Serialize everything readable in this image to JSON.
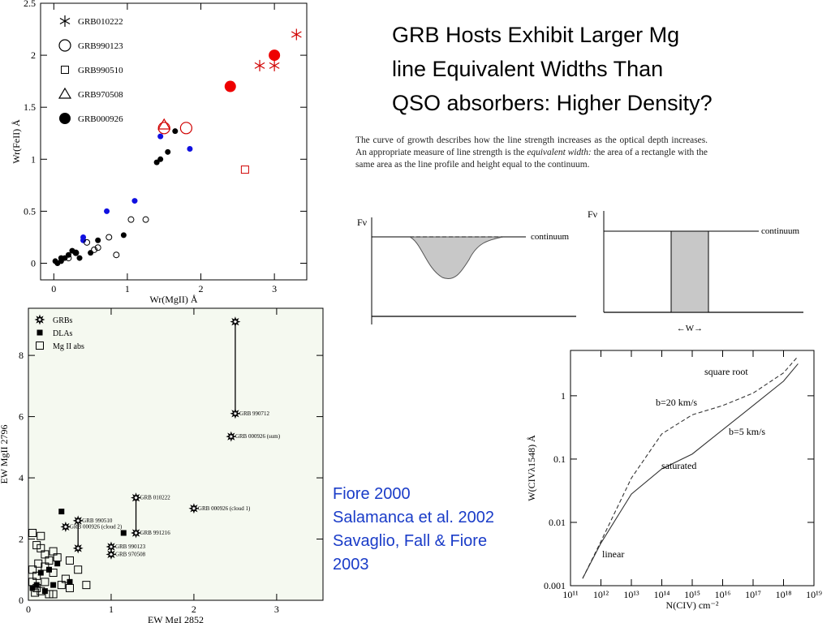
{
  "slide": {
    "title_lines": [
      "GRB Hosts Exhibit Larger Mg",
      "line Equivalent Widths  Than",
      "QSO absorbers: Higher Density?"
    ],
    "citations": [
      "Fiore 2000",
      "Salamanca et al. 2002",
      "Savaglio, Fall & Fiore 2003"
    ]
  },
  "diagram": {
    "paragraph_start": "The curve of growth describes how the line strength increases as the optical depth increases.   An appropriate measure of line strength is the ",
    "paragraph_emphasis": "equivalent width:",
    "paragraph_end": " the area of a rectangle with the same area as the line profile and height equal to the continuum.",
    "flux_label": "Fν",
    "continuum_label": "continuum",
    "width_label": "←W→"
  },
  "chart_data": [
    {
      "type": "scatter",
      "x_label": "Wr(MgII) Å",
      "y_label": "Wr(FeII) Å",
      "xlim": [
        -0.18,
        3.44
      ],
      "ylim": [
        -0.16,
        2.5
      ],
      "xticks": [
        0,
        1,
        2,
        3
      ],
      "yticks": [
        0,
        0.5,
        1,
        1.5,
        2,
        2.5
      ],
      "legend_color": "#000000",
      "series": [
        {
          "name": "GRB010222",
          "marker": "asterisk",
          "color": "#d00000",
          "x": [
            3.3,
            2.8,
            3.0
          ],
          "values": [
            2.2,
            1.9,
            1.9
          ]
        },
        {
          "name": "GRB990123",
          "marker": "circle-open",
          "color": "#d00000",
          "x": [
            1.8,
            1.5
          ],
          "values": [
            1.3,
            1.3
          ]
        },
        {
          "name": "GRB990510",
          "marker": "square-open",
          "color": "#d00000",
          "x": [
            2.6
          ],
          "values": [
            0.9
          ]
        },
        {
          "name": "GRB970508",
          "marker": "triangle-open",
          "color": "#d00000",
          "x": [
            1.5
          ],
          "values": [
            1.33
          ]
        },
        {
          "name": "GRB000926",
          "marker": "circle",
          "color": "#ee0000",
          "x": [
            2.4,
            3.0
          ],
          "values": [
            1.7,
            2.0
          ]
        },
        {
          "marker": "circle-small",
          "color": "#1010e0",
          "x": [
            1.45,
            1.85,
            1.1,
            0.72,
            0.4,
            0.4
          ],
          "values": [
            1.22,
            1.1,
            0.6,
            0.5,
            0.25,
            0.22
          ]
        },
        {
          "marker": "circle-small",
          "color": "#000000",
          "x": [
            1.65,
            1.55,
            1.45,
            1.4,
            0.95,
            0.6,
            0.5,
            0.35,
            0.25,
            0.2,
            0.15,
            0.1,
            0.05,
            0.02,
            0.1,
            0.3
          ],
          "values": [
            1.27,
            1.07,
            1.0,
            0.97,
            0.27,
            0.22,
            0.1,
            0.05,
            0.12,
            0.08,
            0.05,
            0.02,
            0.0,
            0.02,
            0.05,
            0.1
          ]
        },
        {
          "marker": "circle-open-small",
          "color": "#000000",
          "x": [
            1.05,
            1.25,
            0.75,
            0.85,
            0.6,
            0.55,
            0.45,
            0.3,
            0.2
          ],
          "values": [
            0.42,
            0.42,
            0.25,
            0.08,
            0.15,
            0.13,
            0.2,
            0.1,
            0.05
          ]
        }
      ]
    },
    {
      "type": "scatter",
      "background": "#f5f9f0",
      "x_label": "EW MgI 2852",
      "y_label": "EW MgII 2796",
      "xlim": [
        0,
        3.56
      ],
      "ylim": [
        0,
        9.54
      ],
      "xticks": [
        0,
        1,
        2,
        3
      ],
      "yticks": [
        0,
        2,
        4,
        6,
        8
      ],
      "legend_color": "#000000",
      "series": [
        {
          "name": "GRBs",
          "marker": "star",
          "color": "#000000",
          "x": [
            2.5,
            2.5,
            2.45,
            1.3,
            2.0,
            0.6,
            0.45,
            1.3,
            1.0,
            1.0,
            0.6
          ],
          "values": [
            9.1,
            6.1,
            5.35,
            3.35,
            3.0,
            2.6,
            2.4,
            2.2,
            1.75,
            1.5,
            1.7
          ],
          "labels": [
            null,
            "GRB 990712",
            "GRB 000926 (sum)",
            "GRB 010222",
            "GRB 000926 (cloud 1)",
            "GRB 990510",
            "GRB 000926 (cloud 2)",
            "GRB 991216",
            "GRB 990123",
            "GRB 970508",
            null
          ],
          "connected_pairs": [
            [
              0,
              1
            ],
            [
              3,
              7
            ],
            [
              5,
              10
            ]
          ]
        },
        {
          "name": "DLAs",
          "marker": "square",
          "color": "#000000",
          "x": [
            0.4,
            1.15,
            0.35,
            0.25,
            0.1,
            0.3,
            0.5,
            0.15,
            0.05,
            0.2
          ],
          "values": [
            2.9,
            2.2,
            1.2,
            1.0,
            0.5,
            0.5,
            0.6,
            0.9,
            0.4,
            0.3
          ]
        },
        {
          "name": "Mg II abs",
          "marker": "square-open",
          "color": "#000000",
          "x": [
            0.05,
            0.1,
            0.15,
            0.2,
            0.25,
            0.3,
            0.05,
            0.1,
            0.2,
            0.3,
            0.35,
            0.15,
            0.25,
            0.4,
            0.5,
            0.6,
            0.7,
            0.5,
            0.05,
            0.1,
            0.3,
            0.2,
            0.15,
            0.45,
            0.08,
            0.12
          ],
          "values": [
            2.2,
            1.8,
            2.1,
            1.5,
            1.3,
            1.6,
            1.0,
            0.8,
            0.6,
            0.9,
            1.4,
            0.3,
            0.2,
            0.5,
            0.4,
            1.0,
            0.5,
            1.3,
            0.6,
            0.4,
            0.2,
            1.1,
            1.7,
            0.7,
            0.25,
            1.2
          ]
        }
      ]
    },
    {
      "type": "line",
      "x_label": "N(CIV) cm⁻²",
      "y_label": "W(CIVλ1548) Å",
      "xlog": true,
      "ylog": true,
      "xlim": [
        100000000000.0,
        1e+19
      ],
      "ylim": [
        0.001,
        5.2
      ],
      "xticks": [
        {
          "value": 100000000000.0,
          "label": "10¹¹"
        },
        {
          "value": 1000000000000.0,
          "label": "10¹²"
        },
        {
          "value": 10000000000000.0,
          "label": "10¹³"
        },
        {
          "value": 100000000000000.0,
          "label": "10¹⁴"
        },
        {
          "value": 1000000000000000.0,
          "label": "10¹⁵"
        },
        {
          "value": 1e+16,
          "label": "10¹⁶"
        },
        {
          "value": 1e+17,
          "label": "10¹⁷"
        },
        {
          "value": 1e+18,
          "label": "10¹⁸"
        },
        {
          "value": 1e+19,
          "label": "10¹⁹"
        }
      ],
      "yticks": [
        0.001,
        0.01,
        0.1,
        1
      ],
      "x": [
        250000000000.0,
        1000000000000.0,
        10000000000000.0,
        100000000000000.0,
        1000000000000000.0,
        1e+16,
        1e+17,
        1e+18,
        3e+18
      ],
      "series": [
        {
          "name": "b=5 km/s",
          "color": "#333333",
          "dash": false,
          "values": [
            0.0013,
            0.0047,
            0.028,
            0.07,
            0.12,
            0.29,
            0.7,
            1.7,
            3.2
          ]
        },
        {
          "name": "b=20 km/s",
          "color": "#333333",
          "dash": true,
          "values": [
            0.0013,
            0.005,
            0.05,
            0.25,
            0.5,
            0.7,
            1.1,
            2.3,
            4.2
          ]
        }
      ],
      "annotations": [
        "square root",
        "saturated",
        "linear"
      ]
    }
  ]
}
